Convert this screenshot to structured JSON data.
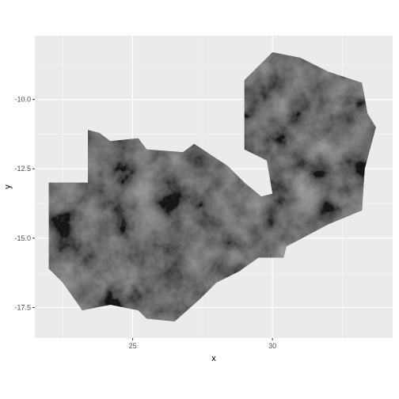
{
  "chart_data": {
    "type": "heatmap",
    "title": "",
    "xlabel": "x",
    "ylabel": "y",
    "xlim": [
      21.5,
      34.3
    ],
    "ylim": [
      -18.6,
      -7.7
    ],
    "x_ticks": [
      25,
      30
    ],
    "x_tick_labels": [
      "25",
      "30"
    ],
    "y_ticks": [
      -10.0,
      -12.5,
      -15.0,
      -17.5
    ],
    "y_tick_labels": [
      "-10.0",
      "-12.5",
      "-15.0",
      "-17.5"
    ],
    "grid": true,
    "legend": "none",
    "fill_scale": "grayscale",
    "region_outline": [
      [
        22.0,
        -13.0
      ],
      [
        23.4,
        -13.0
      ],
      [
        23.4,
        -11.1
      ],
      [
        23.8,
        -11.2
      ],
      [
        24.2,
        -11.5
      ],
      [
        25.2,
        -11.4
      ],
      [
        25.5,
        -11.8
      ],
      [
        26.8,
        -11.9
      ],
      [
        27.2,
        -11.6
      ],
      [
        27.8,
        -12.0
      ],
      [
        28.4,
        -12.4
      ],
      [
        29.0,
        -13.0
      ],
      [
        29.6,
        -13.5
      ],
      [
        30.0,
        -13.4
      ],
      [
        29.8,
        -12.2
      ],
      [
        29.0,
        -11.8
      ],
      [
        29.0,
        -9.3
      ],
      [
        30.0,
        -8.3
      ],
      [
        31.0,
        -8.5
      ],
      [
        32.0,
        -9.0
      ],
      [
        33.2,
        -9.4
      ],
      [
        33.4,
        -10.5
      ],
      [
        33.7,
        -11.0
      ],
      [
        33.3,
        -12.5
      ],
      [
        33.2,
        -14.0
      ],
      [
        32.0,
        -14.5
      ],
      [
        30.5,
        -15.3
      ],
      [
        30.4,
        -15.7
      ],
      [
        29.5,
        -15.7
      ],
      [
        28.8,
        -16.2
      ],
      [
        28.0,
        -16.6
      ],
      [
        27.4,
        -17.2
      ],
      [
        26.5,
        -18.0
      ],
      [
        25.5,
        -17.9
      ],
      [
        25.2,
        -17.6
      ],
      [
        24.2,
        -17.4
      ],
      [
        23.2,
        -17.6
      ],
      [
        22.5,
        -16.6
      ],
      [
        22.0,
        -16.1
      ]
    ]
  }
}
